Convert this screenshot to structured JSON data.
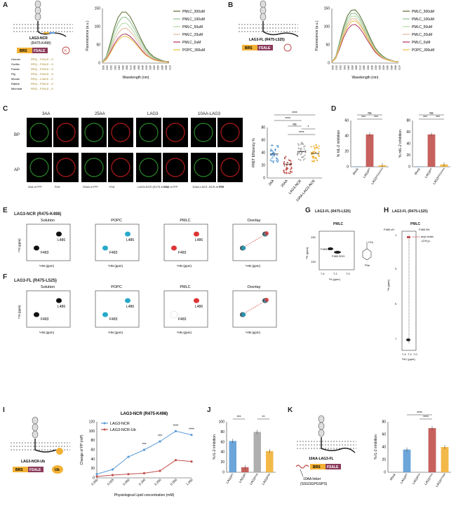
{
  "panels": {
    "A": {
      "letter": "A",
      "construct": "LAG3-NCR",
      "range": "(R475-K498)",
      "motifs": [
        "BRS",
        "FSALE"
      ],
      "species": [
        {
          "name": "Human",
          "seq": "RRQ…FSALE…K"
        },
        {
          "name": "Gorilla",
          "seq": "RRQ…FSALE…K"
        },
        {
          "name": "Panda",
          "seq": "RRQ…FSALE…K"
        },
        {
          "name": "Pig",
          "seq": "RRQ…FSALE…K"
        },
        {
          "name": "Mouse",
          "seq": "RRQ…LSALE…K"
        },
        {
          "name": "Rabbit",
          "seq": "RRQ…FSALE…K"
        },
        {
          "name": "Microbat",
          "seq": "RRQ…FSALE…K"
        }
      ]
    },
    "B": {
      "letter": "B",
      "construct": "LAG3-FL (R475-L525)",
      "motifs": [
        "BRS",
        "FSALE"
      ]
    },
    "C": {
      "letter": "C",
      "cols": [
        "3AA",
        "25AA",
        "LAG3",
        "10AA-LAG3"
      ],
      "rows": [
        "BP",
        "AP"
      ],
      "captions": [
        "3AA-mTFP",
        "R18",
        "25AA-mTFP",
        "R18",
        "LAG3-NCR (R475-K498) -mTFP",
        "R18",
        "10AA-LAG3 -NCR-mTFP",
        "R18"
      ]
    },
    "D": {
      "letter": "D"
    },
    "E": {
      "letter": "E",
      "title": "LAG3-NCR (R475-K498)",
      "subpanels": [
        "Solution",
        "POPC",
        "PMLC",
        "Overlay"
      ],
      "peaks": [
        "L486",
        "F483"
      ]
    },
    "F": {
      "letter": "F",
      "title": "LAG3-FL (R475-L525)",
      "subpanels": [
        "Solution",
        "POPC",
        "PMLC",
        "Overlay"
      ],
      "peaks": [
        "L486",
        "F483"
      ]
    },
    "G": {
      "letter": "G",
      "title": "LAG3-FL (R475-L525)",
      "sub": "PMLC",
      "xlabel": "¹H (ppm)",
      "ylabel": "¹³C (ppm)",
      "xticks": [
        "7.4",
        "7.2",
        "7.0"
      ],
      "yticks": [
        "130",
        "133"
      ],
      "peaks": [
        "F483 εCH",
        "F483 δCH"
      ],
      "chem_label": "Phe"
    },
    "H": {
      "letter": "H",
      "title": "LAG3-FL (R475-L525)",
      "sub": "PMLC",
      "xlabel": "¹HC (ppm)",
      "ylabel": "¹H (ppm)",
      "xticks": [
        "7.4",
        "7.2",
        "7.0"
      ],
      "yticks": [
        "1",
        "3",
        "5",
        "7"
      ],
      "notes": [
        "F483 εH",
        "F483 δH",
        "acyl chain",
        "-(CH₂)ₙ-"
      ]
    },
    "I": {
      "letter": "I",
      "construct": "LAG3-NCR-Ub",
      "motifs": [
        "BRS",
        "FSALE",
        "Ub"
      ]
    },
    "J": {
      "letter": "J"
    },
    "K": {
      "letter": "K",
      "construct": "10AA-LAG3-FL",
      "motifs": [
        "BRS",
        "FSALE"
      ],
      "linker": "10AA linker",
      "linker_seq": "(SSGSGPGSPS)"
    }
  },
  "chart_data": [
    {
      "id": "A",
      "type": "line",
      "xlabel": "Wavelength (nm)",
      "ylabel": "Fluorescence (a.u.)",
      "x": [
        300,
        310,
        320,
        330,
        340,
        350,
        360,
        370,
        380,
        390,
        400,
        410,
        420,
        430,
        440,
        450,
        460,
        470
      ],
      "xlim": [
        300,
        470
      ],
      "ylim": [
        0,
        150
      ],
      "yticks": [
        0,
        50,
        100,
        150
      ],
      "series": [
        {
          "name": "PMLC_300uM",
          "color": "#556b2f",
          "values": [
            3,
            18,
            55,
            95,
            125,
            140,
            140,
            128,
            108,
            85,
            62,
            42,
            28,
            18,
            12,
            8,
            5,
            4
          ]
        },
        {
          "name": "PMLC_100uM",
          "color": "#8fbc8f",
          "values": [
            3,
            16,
            48,
            85,
            110,
            125,
            126,
            115,
            97,
            76,
            56,
            38,
            25,
            16,
            10,
            7,
            5,
            4
          ]
        },
        {
          "name": "PMLC_50uM",
          "color": "#b2d8a0",
          "values": [
            3,
            14,
            42,
            72,
            95,
            108,
            110,
            100,
            85,
            67,
            49,
            33,
            22,
            14,
            9,
            6,
            4,
            3
          ]
        },
        {
          "name": "PMLC_20uM",
          "color": "#e0b8a0",
          "values": [
            3,
            12,
            36,
            62,
            82,
            94,
            96,
            88,
            75,
            59,
            43,
            29,
            19,
            12,
            8,
            5,
            4,
            3
          ]
        },
        {
          "name": "PMLC_0uM",
          "color": "#b03060",
          "values": [
            2,
            10,
            30,
            52,
            68,
            78,
            80,
            74,
            63,
            50,
            36,
            24,
            16,
            10,
            7,
            5,
            3,
            3
          ]
        },
        {
          "name": "POPC_300uM",
          "color": "#e8c040",
          "values": [
            2,
            9,
            27,
            47,
            62,
            72,
            74,
            68,
            58,
            46,
            33,
            22,
            15,
            9,
            6,
            4,
            3,
            2
          ]
        }
      ]
    },
    {
      "id": "B",
      "type": "line",
      "xlabel": "Wavelength (nm)",
      "ylabel": "Fluorescence (a.u.)",
      "x": [
        300,
        310,
        320,
        330,
        340,
        350,
        360,
        370,
        380,
        390,
        400,
        410,
        420,
        430,
        440,
        450,
        460,
        470
      ],
      "xlim": [
        300,
        470
      ],
      "ylim": [
        0,
        150
      ],
      "yticks": [
        0,
        50,
        100,
        150
      ],
      "series": [
        {
          "name": "PMLC_300uM",
          "color": "#556b2f",
          "values": [
            3,
            18,
            58,
            100,
            130,
            145,
            146,
            133,
            112,
            88,
            64,
            43,
            29,
            19,
            12,
            8,
            5,
            4
          ]
        },
        {
          "name": "PMLC_100uM",
          "color": "#8fbc8f",
          "values": [
            3,
            17,
            54,
            93,
            121,
            136,
            137,
            125,
            105,
            82,
            60,
            40,
            27,
            17,
            11,
            7,
            5,
            4
          ]
        },
        {
          "name": "PMLC_50uM",
          "color": "#b2d8a0",
          "values": [
            3,
            16,
            50,
            87,
            113,
            128,
            129,
            118,
            99,
            78,
            57,
            38,
            25,
            16,
            10,
            7,
            5,
            4
          ]
        },
        {
          "name": "PMLC_20uM",
          "color": "#e0b8a0",
          "values": [
            3,
            15,
            47,
            82,
            107,
            121,
            122,
            111,
            94,
            73,
            54,
            36,
            24,
            15,
            10,
            7,
            4,
            3
          ]
        },
        {
          "name": "PMLC_0uM",
          "color": "#b03060",
          "values": [
            2,
            13,
            40,
            70,
            92,
            104,
            106,
            97,
            82,
            64,
            47,
            31,
            21,
            13,
            9,
            6,
            4,
            3
          ]
        },
        {
          "name": "POPC_300uM",
          "color": "#e8c040",
          "values": [
            2,
            14,
            44,
            76,
            100,
            114,
            116,
            106,
            90,
            70,
            51,
            34,
            23,
            14,
            9,
            6,
            4,
            3
          ]
        }
      ]
    },
    {
      "id": "C",
      "type": "scatter",
      "ylabel": "FRET Efficiency %",
      "categories": [
        "3AA",
        "25AA",
        "LAG3-NCR",
        "10AA-LAG3-NCR"
      ],
      "ylim": [
        0,
        80
      ],
      "yticks": [
        0,
        20,
        40,
        60,
        80
      ],
      "colors": [
        "#5b9bd5",
        "#c0504d",
        "#a6a6a6",
        "#f2b134"
      ],
      "means": [
        38,
        22,
        42,
        39
      ],
      "significance": [
        "ns",
        "****",
        "****",
        "*",
        "****"
      ]
    },
    {
      "id": "D1",
      "type": "bar",
      "ylabel": "% hIL-2 inhibition",
      "categories": [
        "Mock",
        "LAG3ᵂᵀ",
        "LAG3ᶠᴬᴸᴱ/ᴬᴬᴬᴬ"
      ],
      "values": [
        0,
        42,
        2
      ],
      "ylim": [
        0,
        60
      ],
      "yticks": [
        0,
        20,
        40,
        60
      ],
      "colors": [
        "#5b9bd5",
        "#c0504d",
        "#f2b134"
      ],
      "significance": [
        "ns",
        "***",
        "***"
      ]
    },
    {
      "id": "D2",
      "type": "bar",
      "ylabel": "% mIL-2 inhibition",
      "categories": [
        "Mock",
        "LAG3ᵂᵀ",
        "LAG3ᶠᴬᴸᴱ/ᴬᴬᴬᴬ"
      ],
      "values": [
        0,
        56,
        4
      ],
      "ylim": [
        0,
        80
      ],
      "yticks": [
        0,
        20,
        40,
        60,
        80
      ],
      "colors": [
        "#5b9bd5",
        "#c0504d",
        "#f2b134"
      ],
      "significance": [
        "ns",
        "***",
        "***"
      ]
    },
    {
      "id": "I",
      "type": "line",
      "title": "LAG3-NCR (R475-K498)",
      "xlabel": "Physiological Lipid concentration (mM)",
      "ylabel": "Change of FP (mP)",
      "categories": [
        "0.000",
        "0.025",
        "0.050",
        "0.100",
        "0.250",
        "0.500",
        "1.000"
      ],
      "ylim": [
        0,
        120
      ],
      "yticks": [
        0,
        20,
        40,
        60,
        80,
        100,
        120
      ],
      "series": [
        {
          "name": "LAG3-NCR",
          "color": "#5b9bd5",
          "values": [
            8,
            18,
            45,
            60,
            78,
            100,
            92
          ]
        },
        {
          "name": "LAG3-NCR-Ub",
          "color": "#c0504d",
          "values": [
            3,
            6,
            8,
            10,
            15,
            38,
            35
          ]
        }
      ],
      "significance": [
        "***",
        "***",
        "****",
        "****"
      ]
    },
    {
      "id": "J",
      "type": "bar",
      "ylabel": "% IL-2 inhibition",
      "categories": [
        "LAG3ᵂᵀ",
        "LAG3ᵏᴿ",
        "LAG3²⁸ᵁᵇ",
        "LAG3ᵏᴿᵁᵇ"
      ],
      "values": [
        62,
        10,
        80,
        42
      ],
      "ylim": [
        0,
        100
      ],
      "yticks": [
        0,
        20,
        40,
        60,
        80,
        100
      ],
      "colors": [
        "#5b9bd5",
        "#c0504d",
        "#a6a6a6",
        "#f2b134"
      ],
      "significance": [
        "***",
        "**"
      ]
    },
    {
      "id": "K",
      "type": "bar",
      "ylabel": "% IL-2 inhibition",
      "categories": [
        "Mock",
        "LAG3ᵂᵀ",
        "LAG3ᴬᴬᴬ",
        "LAG3¹⁰ᴬᴬ",
        "LAG3¹⁰ᴬᴬᵏᴿ"
      ],
      "values": [
        0,
        36,
        0,
        70,
        40
      ],
      "ylim": [
        0,
        80
      ],
      "yticks": [
        0,
        20,
        40,
        60,
        80
      ],
      "colors": [
        "#a6a6a6",
        "#5b9bd5",
        "#a6a6a6",
        "#c0504d",
        "#f2b134"
      ],
      "significance": [
        "****",
        "****"
      ]
    }
  ]
}
